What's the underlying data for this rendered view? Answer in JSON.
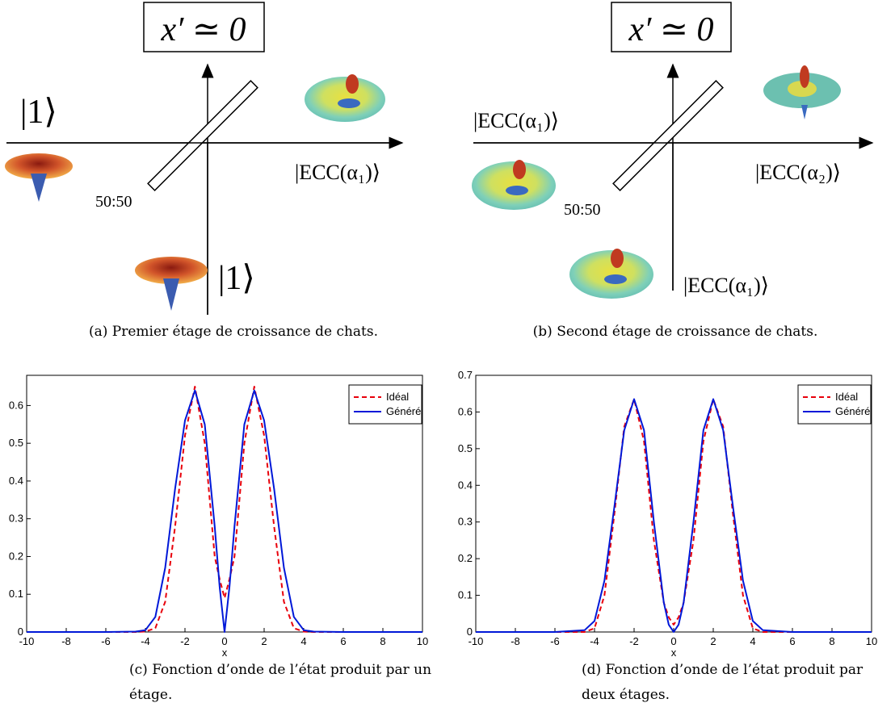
{
  "diagrams": [
    {
      "output": "x′ ≃ 0",
      "input_left": "|1⟩",
      "input_bottom": "|1⟩",
      "output_right": "|ECC(α₁)⟩",
      "splitter": "50:50"
    },
    {
      "output": "x′ ≃ 0",
      "input_left": "|ECC(α₁)⟩",
      "input_bottom": "|ECC(α₁)⟩",
      "output_right": "|ECC(α₂)⟩",
      "splitter": "50:50"
    }
  ],
  "captions": [
    [
      "(a) Premier étage de croissance de chats."
    ],
    [
      "(b) Second étage de croissance de chats."
    ],
    [
      "(c) Fonction d’onde de l’état produit par un",
      "étage."
    ],
    [
      "(d) Fonction d’onde de l’état produit par",
      "deux étages."
    ]
  ],
  "chart_data": [
    {
      "type": "line",
      "xlabel": "x",
      "xlim": [
        -10,
        10
      ],
      "xticks": [
        -10,
        -8,
        -6,
        -4,
        -2,
        0,
        2,
        4,
        6,
        8,
        10
      ],
      "ylim": [
        0,
        0.68
      ],
      "yticks": [
        0,
        0.1,
        0.2,
        0.3,
        0.4,
        0.5,
        0.6
      ],
      "legend": "northeast",
      "x": [
        -10,
        -6,
        -4.5,
        -4,
        -3.5,
        -3,
        -2.5,
        -2,
        -1.5,
        -1,
        -0.5,
        -0.25,
        0,
        0.25,
        0.5,
        1,
        1.5,
        2,
        2.5,
        3,
        3.5,
        4,
        4.5,
        6,
        10
      ],
      "series": [
        {
          "name": "Idéal",
          "color": "#e8000b",
          "dash": true,
          "values": [
            0,
            0,
            0,
            0.001,
            0.01,
            0.08,
            0.28,
            0.52,
            0.65,
            0.5,
            0.2,
            0.14,
            0.09,
            0.14,
            0.2,
            0.5,
            0.65,
            0.52,
            0.28,
            0.08,
            0.01,
            0.001,
            0,
            0,
            0
          ]
        },
        {
          "name": "Généré",
          "color": "#0018d8",
          "dash": false,
          "values": [
            0,
            0,
            0.001,
            0.005,
            0.04,
            0.17,
            0.38,
            0.56,
            0.64,
            0.55,
            0.28,
            0.12,
            0,
            0.12,
            0.28,
            0.55,
            0.64,
            0.56,
            0.38,
            0.17,
            0.04,
            0.005,
            0.001,
            0,
            0
          ]
        }
      ]
    },
    {
      "type": "line",
      "xlabel": "x",
      "xlim": [
        -10,
        10
      ],
      "xticks": [
        -10,
        -8,
        -6,
        -4,
        -2,
        0,
        2,
        4,
        6,
        8,
        10
      ],
      "ylim": [
        0,
        0.7
      ],
      "yticks": [
        0,
        0.1,
        0.2,
        0.3,
        0.4,
        0.5,
        0.6,
        0.7
      ],
      "legend": "northeast",
      "x": [
        -10,
        -6,
        -4.5,
        -4,
        -3.5,
        -3,
        -2.5,
        -2,
        -1.5,
        -1,
        -0.5,
        -0.25,
        0,
        0.25,
        0.5,
        1,
        1.5,
        2,
        2.5,
        3,
        3.5,
        4,
        4.5,
        6,
        10
      ],
      "series": [
        {
          "name": "Idéal",
          "color": "#e8000b",
          "dash": true,
          "values": [
            0,
            0,
            0,
            0.01,
            0.1,
            0.32,
            0.56,
            0.635,
            0.52,
            0.25,
            0.08,
            0.04,
            0.02,
            0.04,
            0.08,
            0.25,
            0.52,
            0.635,
            0.56,
            0.32,
            0.1,
            0.01,
            0,
            0,
            0
          ]
        },
        {
          "name": "Généré",
          "color": "#0018d8",
          "dash": false,
          "values": [
            0,
            0,
            0.005,
            0.03,
            0.14,
            0.34,
            0.55,
            0.635,
            0.55,
            0.3,
            0.08,
            0.02,
            0,
            0.02,
            0.08,
            0.3,
            0.55,
            0.635,
            0.55,
            0.34,
            0.14,
            0.03,
            0.005,
            0,
            0
          ]
        }
      ]
    }
  ]
}
